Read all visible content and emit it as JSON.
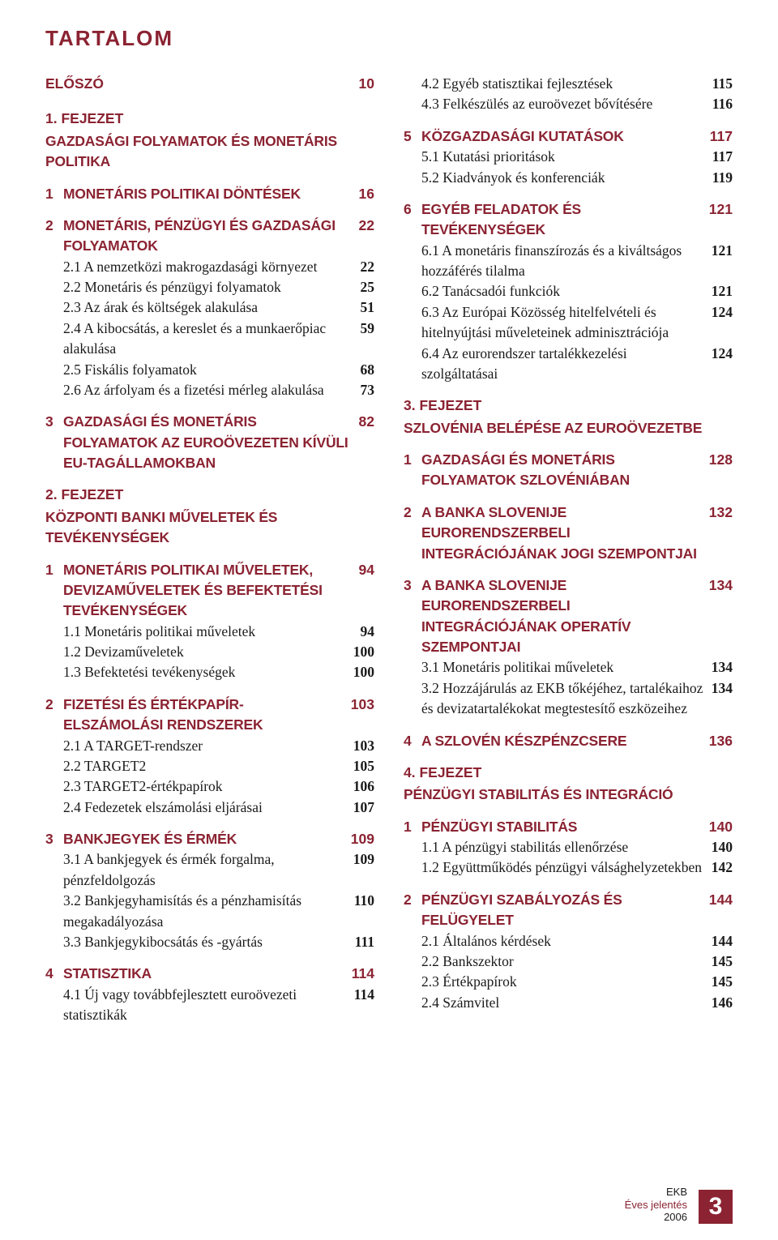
{
  "title": "TARTALOM",
  "left": {
    "preface": {
      "label": "ELŐSZÓ",
      "page": "10"
    },
    "ch1": {
      "num": "1. FEJEZET",
      "title": "GAZDASÁGI FOLYAMATOK ÉS MONETÁRIS POLITIKA",
      "sections": [
        {
          "n": "1",
          "label": "MONETÁRIS POLITIKAI DÖNTÉSEK",
          "page": "16"
        },
        {
          "n": "2",
          "label": "MONETÁRIS, PÉNZÜGYI ÉS GAZDASÁGI FOLYAMATOK",
          "page": "22",
          "subs": [
            {
              "label": "2.1 A nemzetközi makrogazdasági környezet",
              "page": "22"
            },
            {
              "label": "2.2 Monetáris és pénzügyi folyamatok",
              "page": "25"
            },
            {
              "label": "2.3 Az árak és költségek alakulása",
              "page": "51"
            },
            {
              "label": "2.4 A kibocsátás, a kereslet és a munkaerőpiac alakulása",
              "page": "59"
            },
            {
              "label": "2.5 Fiskális folyamatok",
              "page": "68"
            },
            {
              "label": "2.6 Az árfolyam és a fizetési mérleg alakulása",
              "page": "73"
            }
          ]
        },
        {
          "n": "3",
          "label": "GAZDASÁGI ÉS MONETÁRIS FOLYAMATOK AZ EUROÖVEZETEN KÍVÜLI EU-TAGÁLLAMOKBAN",
          "page": "82"
        }
      ]
    },
    "ch2": {
      "num": "2. FEJEZET",
      "title": "KÖZPONTI BANKI MŰVELETEK ÉS TEVÉKENYSÉGEK",
      "sections": [
        {
          "n": "1",
          "label": "MONETÁRIS POLITIKAI MŰVELETEK, DEVIZAMŰVELETEK ÉS BEFEKTETÉSI TEVÉKENYSÉGEK",
          "page": "94",
          "subs": [
            {
              "label": "1.1 Monetáris politikai műveletek",
              "page": "94"
            },
            {
              "label": "1.2 Devizaműveletek",
              "page": "100"
            },
            {
              "label": "1.3 Befektetési tevékenységek",
              "page": "100"
            }
          ]
        },
        {
          "n": "2",
          "label": "FIZETÉSI ÉS ÉRTÉKPAPÍR-ELSZÁMOLÁSI RENDSZEREK",
          "page": "103",
          "subs": [
            {
              "label": "2.1 A TARGET-rendszer",
              "page": "103"
            },
            {
              "label": "2.2 TARGET2",
              "page": "105"
            },
            {
              "label": "2.3 TARGET2-értékpapírok",
              "page": "106"
            },
            {
              "label": "2.4 Fedezetek elszámolási eljárásai",
              "page": "107"
            }
          ]
        },
        {
          "n": "3",
          "label": "BANKJEGYEK ÉS ÉRMÉK",
          "page": "109",
          "subs": [
            {
              "label": "3.1 A bankjegyek és érmék forgalma, pénzfeldolgozás",
              "page": "109"
            },
            {
              "label": "3.2 Bankjegyhamisítás és a pénzhamisítás megakadályozása",
              "page": "110"
            },
            {
              "label": "3.3 Bankjegykibocsátás és -gyártás",
              "page": "111"
            }
          ]
        },
        {
          "n": "4",
          "label": "STATISZTIKA",
          "page": "114",
          "subs": [
            {
              "label": "4.1 Új vagy továbbfejlesztett euroövezeti statisztikák",
              "page": "114"
            }
          ]
        }
      ]
    }
  },
  "right": {
    "top_subs": [
      {
        "label": "4.2 Egyéb statisztikai fejlesztések",
        "page": "115"
      },
      {
        "label": "4.3 Felkészülés az euroövezet bővítésére",
        "page": "116"
      }
    ],
    "sections_a": [
      {
        "n": "5",
        "label": "KÖZGAZDASÁGI KUTATÁSOK",
        "page": "117",
        "subs": [
          {
            "label": "5.1 Kutatási prioritások",
            "page": "117"
          },
          {
            "label": "5.2 Kiadványok és konferenciák",
            "page": "119"
          }
        ]
      },
      {
        "n": "6",
        "label": "EGYÉB FELADATOK ÉS TEVÉKENYSÉGEK",
        "page": "121",
        "subs": [
          {
            "label": "6.1 A monetáris finanszírozás és a kiváltságos hozzáférés tilalma",
            "page": "121"
          },
          {
            "label": "6.2 Tanácsadói funkciók",
            "page": "121"
          },
          {
            "label": "6.3 Az Európai Közösség hitelfelvételi és hitelnyújtási műveleteinek adminisztrációja",
            "page": "124"
          },
          {
            "label": "6.4 Az eurorendszer tartalékkezelési szolgáltatásai",
            "page": "124"
          }
        ]
      }
    ],
    "ch3": {
      "num": "3. FEJEZET",
      "title": "SZLOVÉNIA BELÉPÉSE AZ EUROÖVEZETBE",
      "sections": [
        {
          "n": "1",
          "label": "GAZDASÁGI ÉS MONETÁRIS FOLYAMATOK SZLOVÉNIÁBAN",
          "page": "128"
        },
        {
          "n": "2",
          "label": "A BANKA SLOVENIJE EURORENDSZERBELI INTEGRÁCIÓJÁNAK JOGI SZEMPONTJAI",
          "page": "132"
        },
        {
          "n": "3",
          "label": "A BANKA SLOVENIJE EURORENDSZERBELI INTEGRÁCIÓJÁNAK OPERATÍV SZEMPONTJAI",
          "page": "134",
          "subs": [
            {
              "label": "3.1 Monetáris politikai műveletek",
              "page": "134"
            },
            {
              "label": "3.2 Hozzájárulás az EKB tőkéjéhez, tartalékaihoz és devizatartalékokat megtestesítő eszközeihez",
              "page": "134"
            }
          ]
        },
        {
          "n": "4",
          "label": "A SZLOVÉN KÉSZPÉNZCSERE",
          "page": "136"
        }
      ]
    },
    "ch4": {
      "num": "4. FEJEZET",
      "title": "PÉNZÜGYI STABILITÁS ÉS INTEGRÁCIÓ",
      "sections": [
        {
          "n": "1",
          "label": "PÉNZÜGYI STABILITÁS",
          "page": "140",
          "subs": [
            {
              "label": "1.1 A pénzügyi stabilitás ellenőrzése",
              "page": "140"
            },
            {
              "label": "1.2 Együttműködés pénzügyi válsághelyzetekben",
              "page": "142"
            }
          ]
        },
        {
          "n": "2",
          "label": "PÉNZÜGYI SZABÁLYOZÁS ÉS FELÜGYELET",
          "page": "144",
          "subs": [
            {
              "label": "2.1 Általános kérdések",
              "page": "144"
            },
            {
              "label": "2.2 Bankszektor",
              "page": "145"
            },
            {
              "label": "2.3 Értékpapírok",
              "page": "145"
            },
            {
              "label": "2.4 Számvitel",
              "page": "146"
            }
          ]
        }
      ]
    }
  },
  "footer": {
    "org": "EKB",
    "report": "Éves jelentés",
    "year": "2006",
    "page": "3"
  }
}
